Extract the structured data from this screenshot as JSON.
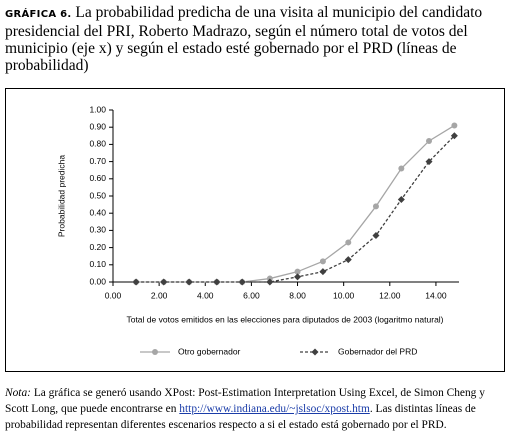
{
  "chart_data": {
    "type": "line",
    "figure_label": "GRÁFICA 6.",
    "title": "La probabilidad predicha de una visita al municipio del candidato presidencial del PRI, Roberto Madrazo, según el número total de votos del municipio (eje x) y según el estado esté gobernado por el PRD (líneas de probabilidad)",
    "xlabel": "Total de votos emitidos en las elecciones para diputados de 2003 (logaritmo natural)",
    "ylabel": "Probabilidad predicha",
    "x": [
      1.0,
      2.2,
      3.3,
      4.5,
      5.6,
      6.8,
      8.0,
      9.1,
      10.2,
      11.4,
      12.5,
      13.7,
      14.8
    ],
    "series": [
      {
        "name": "Otro gobernador",
        "color": "#a6a6a6",
        "marker": "circle",
        "dashed": false,
        "values": [
          0,
          0,
          0,
          0,
          0,
          0.02,
          0.06,
          0.12,
          0.23,
          0.44,
          0.66,
          0.82,
          0.91
        ]
      },
      {
        "name": "Gobernador del PRD",
        "color": "#404040",
        "marker": "diamond",
        "dashed": true,
        "values": [
          0,
          0,
          0,
          0,
          0,
          0,
          0.03,
          0.06,
          0.13,
          0.27,
          0.48,
          0.7,
          0.85
        ]
      }
    ],
    "xlim": [
      0,
      15
    ],
    "xticks": [
      {
        "value": 0,
        "label": "0.00"
      },
      {
        "value": 2,
        "label": "2.00"
      },
      {
        "value": 4,
        "label": "4.00"
      },
      {
        "value": 6,
        "label": "6.00"
      },
      {
        "value": 8,
        "label": "8.00"
      },
      {
        "value": 10,
        "label": "10.00"
      },
      {
        "value": 12,
        "label": "12.00"
      },
      {
        "value": 14,
        "label": "14.00"
      }
    ],
    "ylim": [
      0,
      1
    ],
    "yticks": [
      {
        "value": 0,
        "label": "0.00"
      },
      {
        "value": 0.1,
        "label": "0.10"
      },
      {
        "value": 0.2,
        "label": "0.20"
      },
      {
        "value": 0.3,
        "label": "0.30"
      },
      {
        "value": 0.4,
        "label": "0.40"
      },
      {
        "value": 0.5,
        "label": "0.50"
      },
      {
        "value": 0.6,
        "label": "0.60"
      },
      {
        "value": 0.7,
        "label": "0.70"
      },
      {
        "value": 0.8,
        "label": "0.80"
      },
      {
        "value": 0.9,
        "label": "0.90"
      },
      {
        "value": 1,
        "label": "1.00"
      }
    ],
    "legend": "bottom",
    "note": {
      "label": "Nota:",
      "text1": "La gráfica se generó usando XPost: Post-Estimation Interpretation Using Excel, de Simon Cheng y Scott Long, que puede encontrarse en",
      "url": "http://www.indiana.edu/~jslsoc/xpost.htm",
      "text2": ". Las distintas líneas de probabilidad representan diferentes escenarios respecto a si el estado está gobernado por el PRD."
    }
  }
}
